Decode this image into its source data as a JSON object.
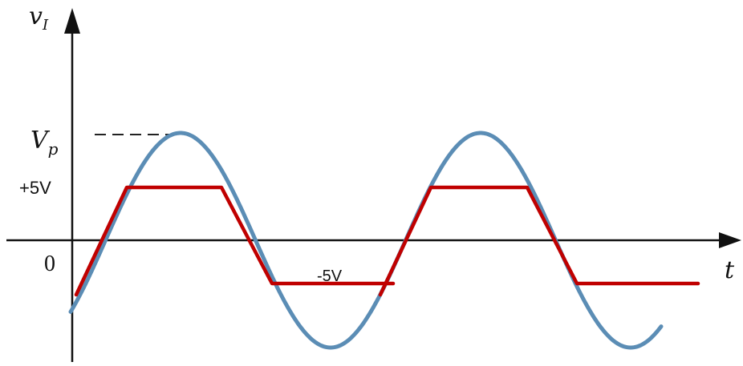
{
  "labels": {
    "y_axis_var": "v",
    "y_axis_sub": "I",
    "x_axis_var": "t",
    "peak_var": "V",
    "peak_sub": "p",
    "pos_level": "+5V",
    "neg_level": "-5V",
    "origin": "0"
  },
  "colors": {
    "axes": "#111111",
    "sine": "#5b8db5",
    "clipped": "#c00000",
    "dashed": "#222222"
  },
  "signal": {
    "sine_waveform": "sinusoid",
    "clipped_waveform": "sinusoid clipped at +5V and -5V",
    "clip_high_label": "+5V",
    "clip_low_label": "-5V"
  }
}
